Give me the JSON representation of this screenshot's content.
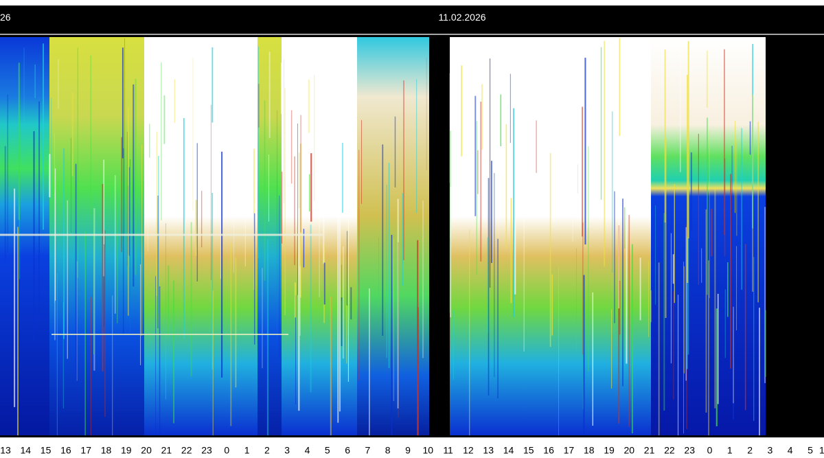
{
  "header": {
    "left_text": "26",
    "date": "11.02.2026"
  },
  "x_axis": {
    "labels": [
      "13",
      "14",
      "15",
      "16",
      "17",
      "18",
      "19",
      "20",
      "21",
      "22",
      "23",
      "0",
      "1",
      "2",
      "3",
      "4",
      "5",
      "6",
      "7",
      "8",
      "9",
      "10",
      "11",
      "12",
      "13",
      "14",
      "15",
      "16",
      "17",
      "18",
      "19",
      "20",
      "21",
      "22",
      "23",
      "0",
      "1",
      "2",
      "3",
      "4",
      "5",
      "1"
    ]
  }
}
